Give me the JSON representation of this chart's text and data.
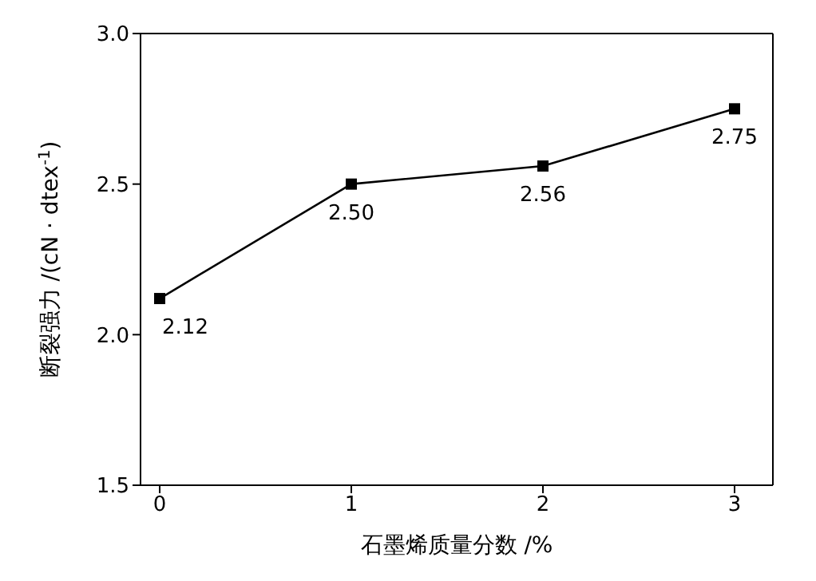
{
  "chart_data": {
    "type": "line",
    "xlabel": "石墨烯质量分数 /%",
    "ylabel": "断裂强力 /(cN · dtex$^{-1}$)",
    "x": [
      0,
      1,
      2,
      3
    ],
    "series": [
      {
        "color": "#000000",
        "values": [
          2.12,
          2.5,
          2.56,
          2.75
        ],
        "value_labels": [
          "2.12",
          "2.50",
          "2.56",
          "2.75"
        ]
      }
    ],
    "xlim": [
      -0.1,
      3.2
    ],
    "xticks": [
      0,
      1,
      2,
      3
    ],
    "ylim": [
      1.5,
      3.0
    ],
    "yticks": [
      1.5,
      {
        "value": 2,
        "label": "2.0"
      },
      2.5,
      {
        "value": 3,
        "label": "3.0"
      }
    ],
    "marker": "square",
    "line_style": "solid",
    "grid": false,
    "legend": false
  }
}
